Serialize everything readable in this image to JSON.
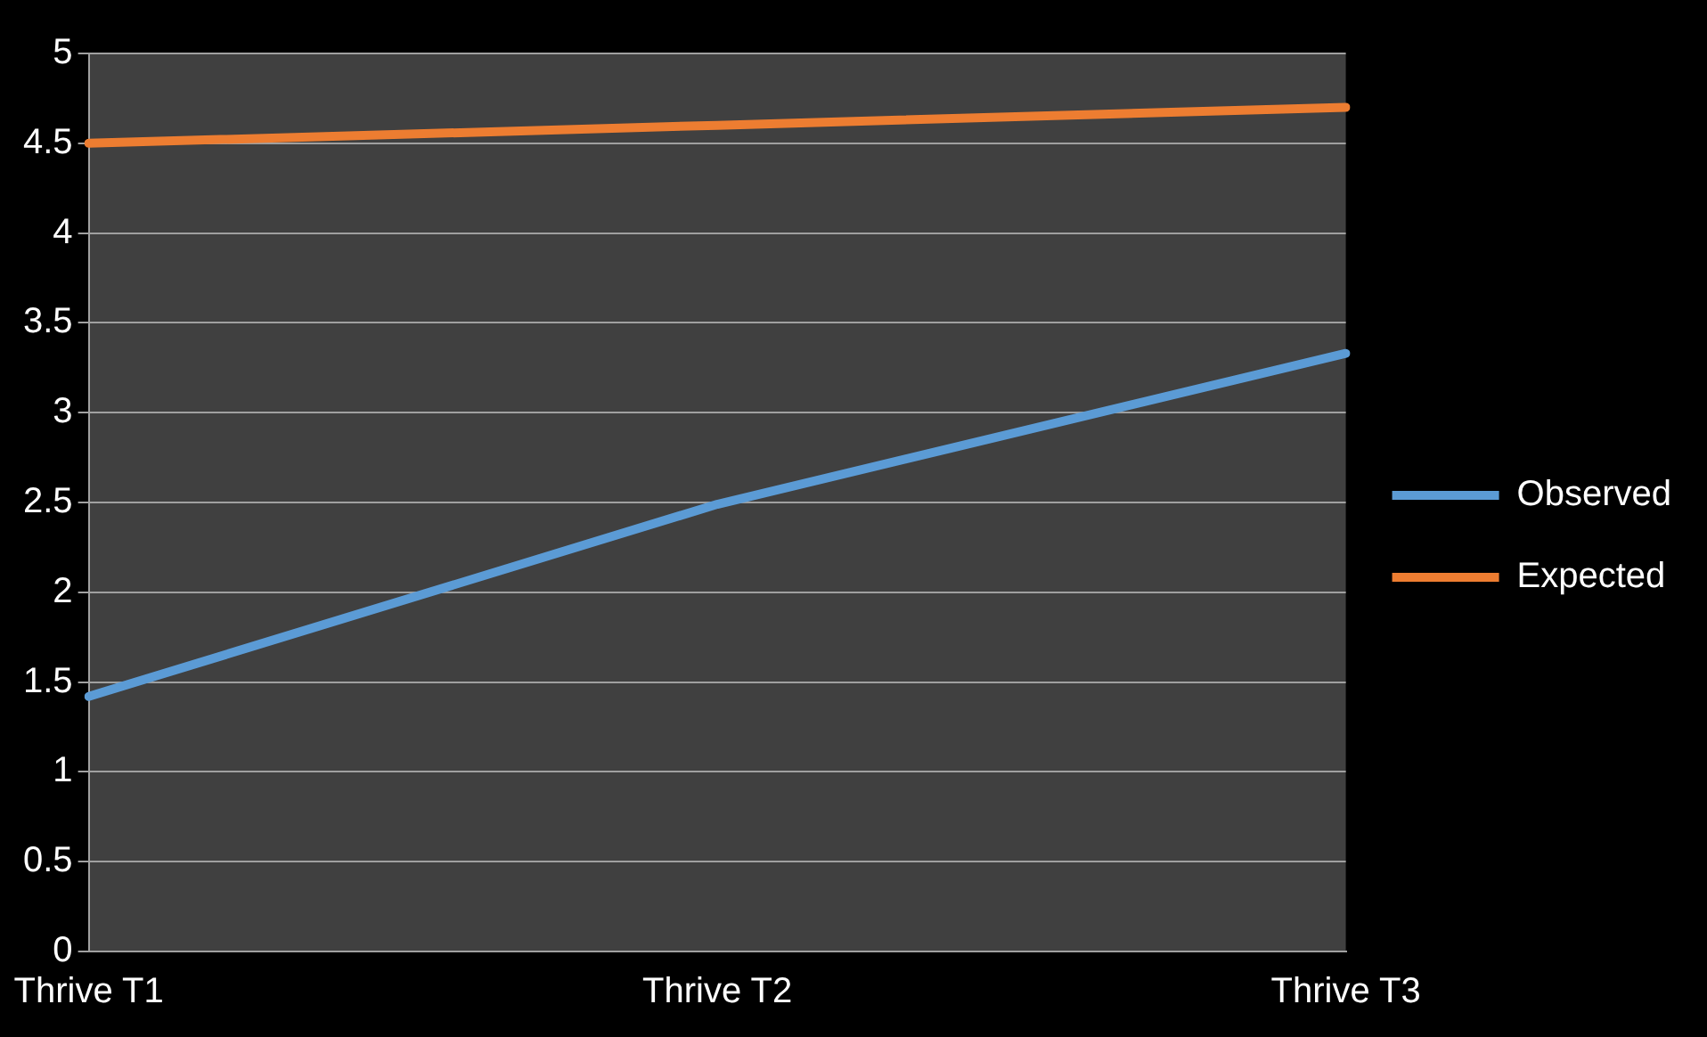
{
  "chart_data": {
    "type": "line",
    "categories": [
      "Thrive T1",
      "Thrive T2",
      "Thrive T3"
    ],
    "series": [
      {
        "name": "Observed",
        "color": "#5b9bd5",
        "values": [
          1.42,
          2.49,
          3.33
        ]
      },
      {
        "name": "Expected",
        "color": "#ed7d31",
        "values": [
          4.5,
          4.6,
          4.7
        ]
      }
    ],
    "ylim": [
      0,
      5
    ],
    "yticks": [
      0,
      0.5,
      1,
      1.5,
      2,
      2.5,
      3,
      3.5,
      4,
      4.5,
      5
    ],
    "grid": "y",
    "legend": "right",
    "marker": "none",
    "line_style": "solid"
  }
}
